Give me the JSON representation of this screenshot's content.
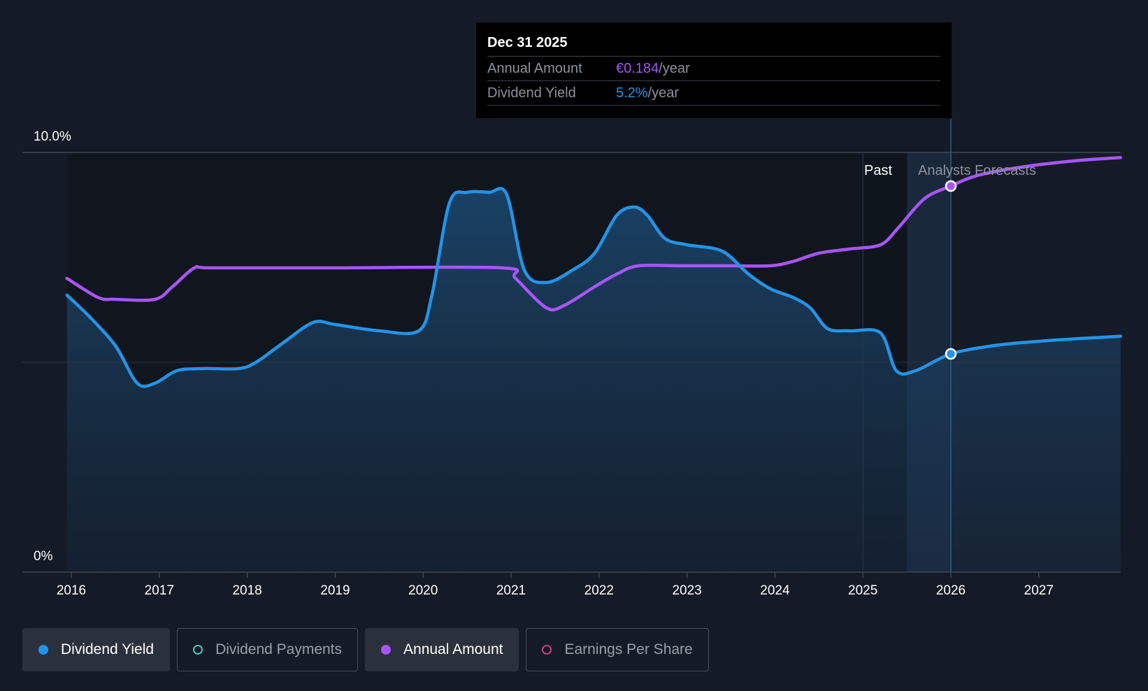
{
  "tooltip": {
    "date": "Dec 31 2025",
    "rows": [
      {
        "label": "Annual Amount",
        "value": "€0.184",
        "unit": "/year"
      },
      {
        "label": "Dividend Yield",
        "value": "5.2%",
        "unit": "/year"
      }
    ]
  },
  "regions": {
    "past": "Past",
    "forecast": "Analysts Forecasts"
  },
  "legend": [
    {
      "label": "Dividend Yield",
      "color": "#2394e8",
      "active": true,
      "filled": true
    },
    {
      "label": "Dividend Payments",
      "color": "#4fc3c3",
      "active": false,
      "filled": false
    },
    {
      "label": "Annual Amount",
      "color": "#a855f7",
      "active": true,
      "filled": true
    },
    {
      "label": "Earnings Per Share",
      "color": "#c2457a",
      "active": false,
      "filled": false
    }
  ],
  "colors": {
    "yield": "#2394e8",
    "amount": "#a855f7",
    "background": "#151b26"
  },
  "chart_data": {
    "type": "line",
    "y_tick_labels": [
      "10.0%",
      "0%"
    ],
    "ylim": [
      0,
      10
    ],
    "x_tick_labels": [
      "2016",
      "2017",
      "2018",
      "2019",
      "2020",
      "2021",
      "2022",
      "2023",
      "2024",
      "2025",
      "2026",
      "2027"
    ],
    "xlim": [
      2015.95,
      2027.93
    ],
    "grid": "horizontal",
    "legend_position": "bottom",
    "highlight_date": 2026.0,
    "past_forecast_divider": 2025.5,
    "series": [
      {
        "name": "Dividend Yield",
        "color": "#2394e8",
        "area": true,
        "points": [
          [
            2015.95,
            6.6
          ],
          [
            2016.2,
            6.1
          ],
          [
            2016.5,
            5.4
          ],
          [
            2016.75,
            4.5
          ],
          [
            2016.95,
            4.5
          ],
          [
            2017.2,
            4.8
          ],
          [
            2017.5,
            4.85
          ],
          [
            2017.9,
            4.85
          ],
          [
            2018.1,
            5.0
          ],
          [
            2018.4,
            5.45
          ],
          [
            2018.75,
            5.95
          ],
          [
            2019.0,
            5.9
          ],
          [
            2019.5,
            5.75
          ],
          [
            2019.95,
            5.75
          ],
          [
            2020.1,
            6.6
          ],
          [
            2020.3,
            8.8
          ],
          [
            2020.5,
            9.05
          ],
          [
            2020.75,
            9.05
          ],
          [
            2020.95,
            9.0
          ],
          [
            2021.15,
            7.2
          ],
          [
            2021.4,
            6.9
          ],
          [
            2021.7,
            7.2
          ],
          [
            2021.95,
            7.6
          ],
          [
            2022.2,
            8.5
          ],
          [
            2022.4,
            8.7
          ],
          [
            2022.55,
            8.5
          ],
          [
            2022.75,
            7.95
          ],
          [
            2023.0,
            7.8
          ],
          [
            2023.4,
            7.65
          ],
          [
            2023.7,
            7.1
          ],
          [
            2023.95,
            6.75
          ],
          [
            2024.2,
            6.55
          ],
          [
            2024.4,
            6.3
          ],
          [
            2024.6,
            5.8
          ],
          [
            2024.85,
            5.75
          ],
          [
            2025.2,
            5.7
          ],
          [
            2025.38,
            4.8
          ],
          [
            2025.6,
            4.8
          ],
          [
            2026.0,
            5.2
          ],
          [
            2026.5,
            5.4
          ],
          [
            2027.0,
            5.5
          ],
          [
            2027.5,
            5.57
          ],
          [
            2027.93,
            5.62
          ]
        ]
      },
      {
        "name": "Annual Amount",
        "color": "#a855f7",
        "area": false,
        "points": [
          [
            2015.95,
            7.0
          ],
          [
            2016.3,
            6.55
          ],
          [
            2016.5,
            6.5
          ],
          [
            2016.95,
            6.5
          ],
          [
            2017.15,
            6.8
          ],
          [
            2017.4,
            7.25
          ],
          [
            2017.6,
            7.25
          ],
          [
            2019.0,
            7.25
          ],
          [
            2020.9,
            7.25
          ],
          [
            2021.05,
            7.0
          ],
          [
            2021.4,
            6.3
          ],
          [
            2021.6,
            6.35
          ],
          [
            2021.95,
            6.8
          ],
          [
            2022.2,
            7.1
          ],
          [
            2022.45,
            7.3
          ],
          [
            2022.95,
            7.3
          ],
          [
            2023.5,
            7.3
          ],
          [
            2023.95,
            7.3
          ],
          [
            2024.2,
            7.4
          ],
          [
            2024.5,
            7.6
          ],
          [
            2024.85,
            7.7
          ],
          [
            2025.2,
            7.8
          ],
          [
            2025.4,
            8.2
          ],
          [
            2025.7,
            8.9
          ],
          [
            2026.0,
            9.2
          ],
          [
            2026.3,
            9.45
          ],
          [
            2026.8,
            9.65
          ],
          [
            2027.4,
            9.8
          ],
          [
            2027.93,
            9.88
          ]
        ]
      }
    ],
    "highlight_points": [
      {
        "series": "Annual Amount",
        "x": 2026.0,
        "y": 9.2
      },
      {
        "series": "Dividend Yield",
        "x": 2026.0,
        "y": 5.2
      }
    ]
  }
}
